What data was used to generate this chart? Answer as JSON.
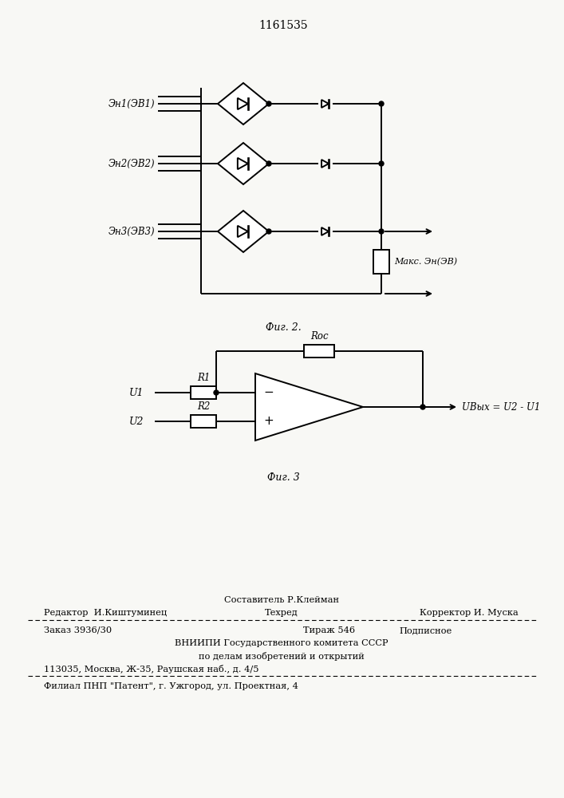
{
  "bg_color": "#f8f8f5",
  "patent_number": "1161535",
  "fig2_caption": "Фиг. 2.",
  "fig3_caption": "Фиг. 3",
  "label1": "Эн1(ЭВ1)",
  "label2": "Эн2(ЭВ2)",
  "label3": "Эн3(ЭВ3)",
  "label_max": "Макс. Эн(ЭВ)",
  "label_u1": "U1",
  "label_r1": "R1",
  "label_u2": "U2",
  "label_r2": "R2",
  "label_roc": "Roc",
  "label_uout": "UВых = U2 - U1",
  "footer_line1_center": "Составитель Р.Клейман",
  "footer_editor": "Редактор  И.Киштуминец",
  "footer_tehred": "Техред",
  "footer_corrector": "Корректор И. Муска",
  "footer_order": "Заказ 3936/30",
  "footer_tirazh": "Тираж 546",
  "footer_podpisnoe": "Подписное",
  "footer_vniipи": "ВНИИПИ Государственного комитета СССР",
  "footer_dela": "по делам изобретений и открытий",
  "footer_addr": "113035, Москва, Ж-35, Раушская наб., д. 4/5",
  "footer_filial": "Филиал ПНП \"Патент\", г. Ужгород, ул. Проектная, 4"
}
